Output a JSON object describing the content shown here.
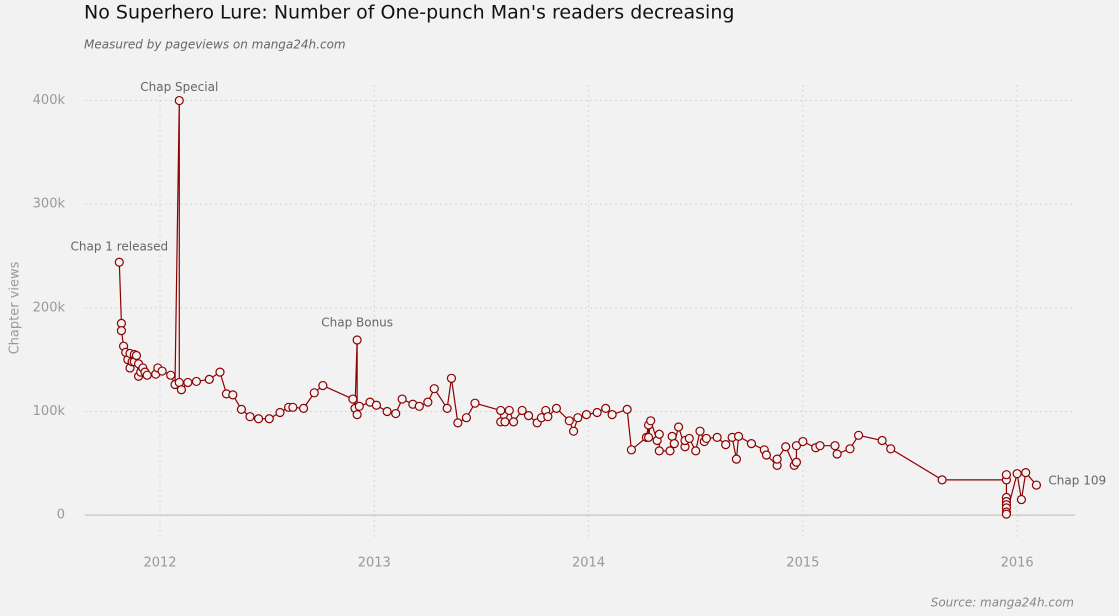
{
  "chart_data": {
    "type": "line",
    "title": "No Superhero Lure: Number of One-punch Man's readers decreasing",
    "subtitle": "Measured by pageviews on manga24h.com",
    "y_label": "Chapter views",
    "source": "Source: manga24h.com",
    "annotations": [
      "Chap 1 released",
      "Chap Special",
      "Chap Bonus",
      "Chap 109"
    ],
    "color": "#8b0000",
    "grid": true,
    "xlim": [
      2011.65,
      2016.27
    ],
    "xticks": [
      2012,
      2013,
      2014,
      2015,
      2016
    ],
    "ylim": [
      -24000,
      415000
    ],
    "yticks": [
      0,
      {
        "value": 100000,
        "label": "100k"
      },
      {
        "value": 200000,
        "label": "200k"
      },
      {
        "value": 300000,
        "label": "300k"
      },
      {
        "value": 400000,
        "label": "400k"
      }
    ],
    "x": [
      2011.81,
      2011.82,
      2011.82,
      2011.83,
      2011.84,
      2011.85,
      2011.86,
      2011.86,
      2011.87,
      2011.88,
      2011.88,
      2011.89,
      2011.9,
      2011.9,
      2011.91,
      2011.92,
      2011.93,
      2011.94,
      2011.98,
      2011.99,
      2012.01,
      2012.05,
      2012.07,
      2012.09,
      2012.09,
      2012.1,
      2012.13,
      2012.17,
      2012.23,
      2012.28,
      2012.31,
      2012.34,
      2012.38,
      2012.42,
      2012.46,
      2012.51,
      2012.56,
      2012.6,
      2012.62,
      2012.67,
      2012.72,
      2012.76,
      2012.9,
      2012.91,
      2012.92,
      2012.92,
      2012.93,
      2012.98,
      2013.01,
      2013.06,
      2013.1,
      2013.13,
      2013.18,
      2013.21,
      2013.25,
      2013.28,
      2013.34,
      2013.36,
      2013.39,
      2013.43,
      2013.47,
      2013.59,
      2013.59,
      2013.61,
      2013.63,
      2013.65,
      2013.69,
      2013.72,
      2013.76,
      2013.78,
      2013.8,
      2013.81,
      2013.85,
      2013.91,
      2013.93,
      2013.95,
      2013.99,
      2014.04,
      2014.08,
      2014.11,
      2014.18,
      2014.2,
      2014.27,
      2014.28,
      2014.28,
      2014.29,
      2014.32,
      2014.33,
      2014.33,
      2014.38,
      2014.39,
      2014.4,
      2014.42,
      2014.45,
      2014.45,
      2014.47,
      2014.5,
      2014.52,
      2014.54,
      2014.55,
      2014.6,
      2014.64,
      2014.67,
      2014.69,
      2014.7,
      2014.76,
      2014.82,
      2014.83,
      2014.88,
      2014.88,
      2014.92,
      2014.96,
      2014.97,
      2014.97,
      2015.0,
      2015.06,
      2015.08,
      2015.15,
      2015.16,
      2015.22,
      2015.26,
      2015.37,
      2015.41,
      2015.65,
      2015.95,
      2015.95,
      2015.95,
      2015.95,
      2015.95,
      2015.95,
      2015.95,
      2015.95,
      2016.0,
      2016.02,
      2016.04,
      2016.09
    ],
    "values": [
      244000,
      185000,
      178000,
      163000,
      157000,
      150000,
      156000,
      142000,
      148000,
      155000,
      148000,
      154000,
      134000,
      146000,
      138000,
      142000,
      138000,
      135000,
      136000,
      142000,
      139000,
      135000,
      126000,
      400000,
      128000,
      121000,
      128000,
      129000,
      131000,
      138000,
      117000,
      116000,
      102000,
      95000,
      93000,
      93000,
      99000,
      104000,
      104000,
      103000,
      118000,
      125000,
      112000,
      103000,
      169000,
      97000,
      105000,
      109000,
      106000,
      100000,
      98000,
      112000,
      107000,
      105000,
      109000,
      122000,
      103000,
      132000,
      89000,
      94000,
      108000,
      101000,
      90000,
      90000,
      101000,
      90000,
      101000,
      96000,
      89000,
      94000,
      101000,
      95000,
      103000,
      91000,
      81000,
      94000,
      97000,
      99000,
      103000,
      97000,
      102000,
      63000,
      75000,
      87000,
      75000,
      91000,
      72000,
      78000,
      62000,
      62000,
      76000,
      69000,
      85000,
      66000,
      72000,
      74000,
      62000,
      81000,
      71000,
      74000,
      75000,
      68000,
      75000,
      54000,
      76000,
      69000,
      63000,
      58000,
      48000,
      54000,
      66000,
      48000,
      51000,
      67000,
      71000,
      65000,
      67000,
      67000,
      59000,
      64000,
      77000,
      72000,
      64000,
      34000,
      34000,
      39000,
      17000,
      13000,
      10000,
      7000,
      3000,
      1000,
      40000,
      15000,
      41000,
      29000
    ]
  }
}
